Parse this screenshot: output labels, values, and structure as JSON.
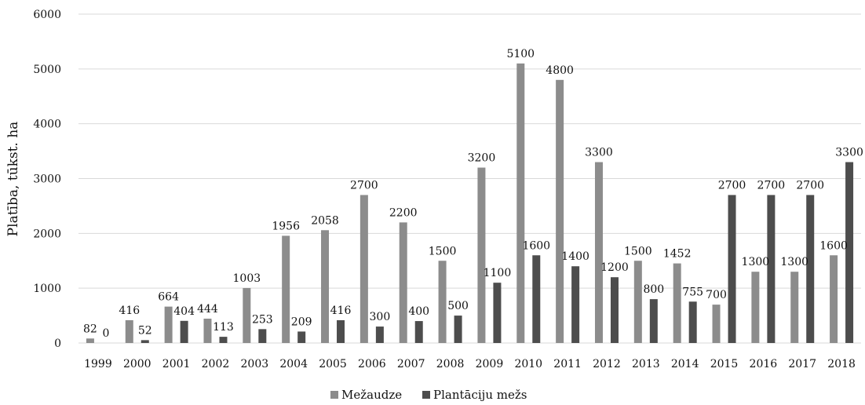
{
  "chart_data": {
    "type": "bar",
    "ylabel": "Platība, tūkst. ha",
    "ylim": [
      0,
      6000
    ],
    "yticks": [
      0,
      1000,
      2000,
      3000,
      4000,
      5000,
      6000
    ],
    "grid": true,
    "legend_position": "bottom",
    "categories": [
      "1999",
      "2000",
      "2001",
      "2002",
      "2003",
      "2004",
      "2005",
      "2006",
      "2007",
      "2008",
      "2009",
      "2010",
      "2011",
      "2012",
      "2013",
      "2014",
      "2015",
      "2016",
      "2017",
      "2018"
    ],
    "series": [
      {
        "name": "Mežaudze",
        "color": "#8c8c8c",
        "values": [
          82,
          416,
          664,
          444,
          1003,
          1956,
          2058,
          2700,
          2200,
          1500,
          3200,
          5100,
          4800,
          3300,
          1500,
          1452,
          700,
          1300,
          1300,
          1600
        ]
      },
      {
        "name": "Plantāciju mežs",
        "color": "#4d4d4d",
        "values": [
          0,
          52,
          404,
          113,
          253,
          209,
          416,
          300,
          400,
          500,
          1100,
          1600,
          1400,
          1200,
          800,
          755,
          2700,
          2700,
          2700,
          3300
        ]
      }
    ]
  }
}
